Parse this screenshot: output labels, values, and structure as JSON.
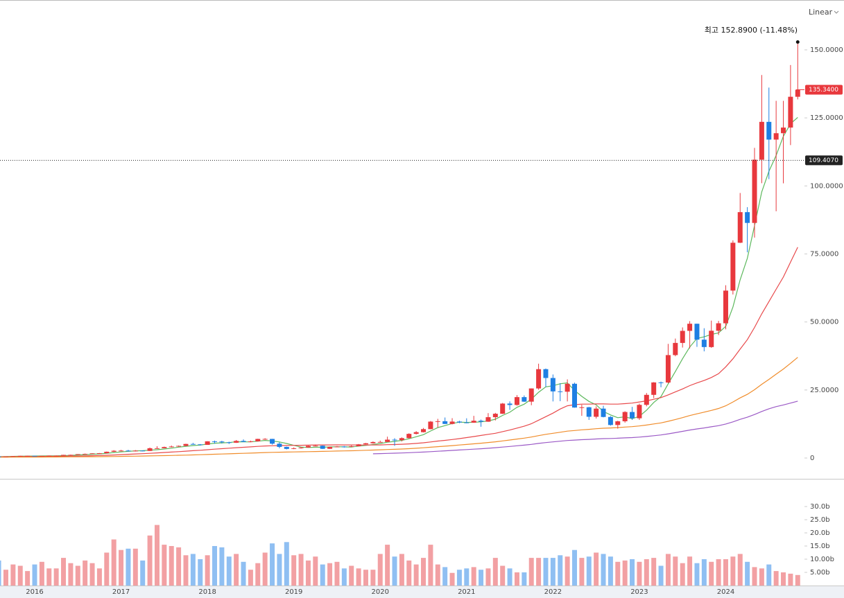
{
  "chart_data": {
    "type": "candlestick",
    "scale_mode": "Linear",
    "high_label": "최고 152.8900 (-11.48%)",
    "last_price": {
      "value": 135.34,
      "label": "135.3400"
    },
    "crosshair": {
      "value": 109.407,
      "label": "109.4070"
    },
    "categories": [
      null,
      null,
      null,
      null,
      null,
      "2016",
      null,
      null,
      null,
      null,
      null,
      null,
      null,
      null,
      null,
      null,
      null,
      "2017",
      null,
      null,
      null,
      null,
      null,
      null,
      null,
      null,
      null,
      null,
      null,
      "2018",
      null,
      null,
      null,
      null,
      null,
      null,
      null,
      null,
      null,
      null,
      null,
      "2019",
      null,
      null,
      null,
      null,
      null,
      null,
      null,
      null,
      null,
      null,
      null,
      "2020",
      null,
      null,
      null,
      null,
      null,
      null,
      null,
      null,
      null,
      null,
      null,
      "2021",
      null,
      null,
      null,
      null,
      null,
      null,
      null,
      null,
      null,
      null,
      null,
      "2022",
      null,
      null,
      null,
      null,
      null,
      null,
      null,
      null,
      null,
      null,
      null,
      "2023",
      null,
      null,
      null,
      null,
      null,
      null,
      null,
      null,
      null,
      null,
      null,
      "2024",
      null,
      null,
      null,
      null,
      null,
      null,
      null,
      null,
      null,
      null
    ],
    "open": [
      0.57,
      0.56,
      0.62,
      0.71,
      0.8,
      0.82,
      0.73,
      0.79,
      0.89,
      0.89,
      1.16,
      1.18,
      1.43,
      1.53,
      1.71,
      1.78,
      2.31,
      2.67,
      2.73,
      2.72,
      2.72,
      2.6,
      3.6,
      3.61,
      4.06,
      4.24,
      4.47,
      5.17,
      5.02,
      4.84,
      6.14,
      6.06,
      5.79,
      5.62,
      6.29,
      5.92,
      6.12,
      7.02,
      7.02,
      5.27,
      4.09,
      3.34,
      3.59,
      3.86,
      4.49,
      4.52,
      3.39,
      4.11,
      4.22,
      4.19,
      4.35,
      5.03,
      5.42,
      5.88,
      5.91,
      6.75,
      6.59,
      7.31,
      8.88,
      9.5,
      10.62,
      13.38,
      13.53,
      12.53,
      13.4,
      13.06,
      12.99,
      13.71,
      13.35,
      15.01,
      16.27,
      20.01,
      19.5,
      22.38,
      20.72,
      25.57,
      32.66,
      29.41,
      24.49,
      24.37,
      27.29,
      18.55,
      18.66,
      15.16,
      18.16,
      15.09,
      12.14,
      13.5,
      16.92,
      14.61,
      19.54,
      23.22,
      27.78,
      27.75,
      37.83,
      42.3,
      46.73,
      49.35,
      43.5,
      40.78,
      46.77,
      49.52,
      61.53,
      79.11,
      90.36,
      86.4,
      109.63,
      123.54,
      117.02,
      119.37,
      121.44,
      132.76
    ],
    "high": [
      0.6,
      0.63,
      0.72,
      0.82,
      0.85,
      0.83,
      0.79,
      0.91,
      0.95,
      1.18,
      1.25,
      1.45,
      1.65,
      1.73,
      1.84,
      2.38,
      2.89,
      3.0,
      3.02,
      2.92,
      2.82,
      3.85,
      4.35,
      4.2,
      4.6,
      4.6,
      5.25,
      5.58,
      5.12,
      6.17,
      6.4,
      6.35,
      6.0,
      6.62,
      6.85,
      6.4,
      7.08,
      7.3,
      7.05,
      5.77,
      4.2,
      3.9,
      4.1,
      4.63,
      4.93,
      4.6,
      4.2,
      4.4,
      4.4,
      4.65,
      5.15,
      5.55,
      6.1,
      6.4,
      7.85,
      7.3,
      7.6,
      9.1,
      9.9,
      11.05,
      13.6,
      14.4,
      14.9,
      14.65,
      13.7,
      14.6,
      15.5,
      14.13,
      16.5,
      16.6,
      20.23,
      20.82,
      23.12,
      23.0,
      25.6,
      34.67,
      32.9,
      30.7,
      27.5,
      28.9,
      27.7,
      19.6,
      18.8,
      19.0,
      19.2,
      15.4,
      13.7,
      17.2,
      18.8,
      20.0,
      23.9,
      27.9,
      28.1,
      41.95,
      43.9,
      48.0,
      50.3,
      49.35,
      47.7,
      50.5,
      50.4,
      63.5,
      80.0,
      97.4,
      92.2,
      114.0,
      140.76,
      136.15,
      131.26,
      131.26,
      144.42,
      152.89
    ],
    "low": [
      0.44,
      0.52,
      0.6,
      0.68,
      0.77,
      0.65,
      0.61,
      0.77,
      0.86,
      0.88,
      1.1,
      1.16,
      1.4,
      1.51,
      1.62,
      1.67,
      2.21,
      2.46,
      2.4,
      2.4,
      2.45,
      2.55,
      3.4,
      3.6,
      3.9,
      4.15,
      4.4,
      4.95,
      4.62,
      4.84,
      5.28,
      5.35,
      5.15,
      5.55,
      5.9,
      5.8,
      6.05,
      6.7,
      4.9,
      3.6,
      3.17,
      3.25,
      3.45,
      3.85,
      4.45,
      3.35,
      3.35,
      4.0,
      3.85,
      4.12,
      4.3,
      4.98,
      5.3,
      5.8,
      5.9,
      4.5,
      6.09,
      7.18,
      8.65,
      9.4,
      10.55,
      11.2,
      12.5,
      12.35,
      12.8,
      12.8,
      12.93,
      11.5,
      13.3,
      13.8,
      16.2,
      17.7,
      19.24,
      20.6,
      19.4,
      25.1,
      26.1,
      20.8,
      20.9,
      20.8,
      18.5,
      15.5,
      14.0,
      14.5,
      14.95,
      11.91,
      10.81,
      13.0,
      14.0,
      14.0,
      19.0,
      22.0,
      26.0,
      27.5,
      37.4,
      40.6,
      40.3,
      40.85,
      39.2,
      40.5,
      45.2,
      47.3,
      60.1,
      79.0,
      75.6,
      81.0,
      101.0,
      102.5,
      90.69,
      100.95,
      115.0,
      131.8
    ],
    "close": [
      0.56,
      0.62,
      0.71,
      0.8,
      0.82,
      0.73,
      0.79,
      0.89,
      0.89,
      1.16,
      1.18,
      1.43,
      1.53,
      1.71,
      1.78,
      2.31,
      2.67,
      2.73,
      2.72,
      2.72,
      2.6,
      3.6,
      3.61,
      4.06,
      4.24,
      4.47,
      5.17,
      5.02,
      4.84,
      6.14,
      6.06,
      5.79,
      5.62,
      6.29,
      5.92,
      6.12,
      7.02,
      7.02,
      5.27,
      4.09,
      3.34,
      3.59,
      3.86,
      4.49,
      4.52,
      3.39,
      4.11,
      4.22,
      4.19,
      4.35,
      5.03,
      5.42,
      5.88,
      5.91,
      6.75,
      6.59,
      7.31,
      8.88,
      9.5,
      10.62,
      13.38,
      13.53,
      12.53,
      13.4,
      13.06,
      12.99,
      13.71,
      13.35,
      15.01,
      16.27,
      20.01,
      19.5,
      22.38,
      20.72,
      25.57,
      32.66,
      29.41,
      24.49,
      24.37,
      27.29,
      18.55,
      18.66,
      15.16,
      18.16,
      15.09,
      12.14,
      13.5,
      16.92,
      14.61,
      19.54,
      23.22,
      27.78,
      27.75,
      37.83,
      42.3,
      46.73,
      49.35,
      43.5,
      40.78,
      46.77,
      49.52,
      61.53,
      79.11,
      90.36,
      86.4,
      109.63,
      123.54,
      117.02,
      119.37,
      121.44,
      132.76,
      135.34
    ],
    "up_color": "#e8383d",
    "down_color": "#1e7fe3",
    "volume_up_color": "#f2a0a3",
    "volume_down_color": "#8fbff2",
    "volume": [
      9.5,
      6,
      8,
      7.5,
      5.5,
      8,
      9,
      6.5,
      6.5,
      10.5,
      8.5,
      7.5,
      9.5,
      8.5,
      6.5,
      12.5,
      17.5,
      13.5,
      14,
      14,
      9.5,
      19,
      23,
      15.5,
      15,
      14.5,
      11.5,
      12,
      10,
      11.5,
      15,
      14.5,
      11,
      12,
      9,
      6,
      8.5,
      12.5,
      16,
      12,
      16.5,
      11.5,
      12,
      9.5,
      11,
      8,
      8.5,
      9,
      6.5,
      7.5,
      6.5,
      6,
      6,
      12,
      15.5,
      11,
      12,
      9.5,
      8,
      10.5,
      15.5,
      8,
      7,
      4.8,
      6,
      6.5,
      7,
      6,
      6.5,
      10.5,
      7.5,
      6.5,
      5,
      5,
      10.5,
      10.5,
      10.5,
      10.5,
      11.5,
      11,
      13.5,
      10.5,
      11,
      12.5,
      12,
      11,
      9,
      9.5,
      10,
      9,
      10,
      10.5,
      7.5,
      12,
      11,
      8.5,
      11,
      8.5,
      10,
      9,
      10,
      10,
      11,
      12,
      9,
      7,
      6.5,
      8,
      5.5,
      5,
      4.5,
      4
    ],
    "series": [
      {
        "color": "#5cb85c",
        "values": [
          0.52,
          0.55,
          0.6,
          0.65,
          0.7,
          0.74,
          0.77,
          0.81,
          0.82,
          0.89,
          0.98,
          1.11,
          1.24,
          1.4,
          1.53,
          1.75,
          2.0,
          2.24,
          2.44,
          2.63,
          2.69,
          2.87,
          3.05,
          3.32,
          3.62,
          4.0,
          4.31,
          4.59,
          4.75,
          5.13,
          5.45,
          5.57,
          5.69,
          5.98,
          5.94,
          5.95,
          6.19,
          6.47,
          6.27,
          5.9,
          5.35,
          4.66,
          4.03,
          3.87,
          3.96,
          3.97,
          4.07,
          4.15,
          4.09,
          4.05,
          4.38,
          4.64,
          4.97,
          5.32,
          5.8,
          6.11,
          6.49,
          7.09,
          7.81,
          8.58,
          9.94,
          11.18,
          11.91,
          12.69,
          13.18,
          13.1,
          13.14,
          13.3,
          13.62,
          14.27,
          15.67,
          16.83,
          18.63,
          19.78,
          21.64,
          24.17,
          26.15,
          26.57,
          27.3,
          27.64,
          24.82,
          22.67,
          20.81,
          19.56,
          17.12,
          15.84,
          14.81,
          15.16,
          14.45,
          15.34,
          17.56,
          20.41,
          22.58,
          27.22,
          31.78,
          36.48,
          40.79,
          43.94,
          44.53,
          45.43,
          45.98,
          48.42,
          55.54,
          65.46,
          73.38,
          85.41,
          97.81,
          105.39,
          111.19,
          118.2,
          122.83,
          125.19
        ]
      },
      {
        "color": "#e8484a",
        "values": [
          0.45,
          0.47,
          0.49,
          0.52,
          0.55,
          0.57,
          0.59,
          0.61,
          0.63,
          0.66,
          0.7,
          0.75,
          0.8,
          0.86,
          0.93,
          1.02,
          1.13,
          1.25,
          1.37,
          1.49,
          1.6,
          1.74,
          1.88,
          2.03,
          2.18,
          2.34,
          2.52,
          2.7,
          2.86,
          3.06,
          3.26,
          3.44,
          3.62,
          3.8,
          3.95,
          4.1,
          4.27,
          4.42,
          4.51,
          4.58,
          4.61,
          4.65,
          4.69,
          4.75,
          4.8,
          4.8,
          4.82,
          4.83,
          4.82,
          4.8,
          4.79,
          4.78,
          4.78,
          4.82,
          4.91,
          4.97,
          5.06,
          5.2,
          5.38,
          5.6,
          5.92,
          6.23,
          6.49,
          6.81,
          7.13,
          7.5,
          7.9,
          8.3,
          8.7,
          9.1,
          9.7,
          10.3,
          11.0,
          11.7,
          12.6,
          13.9,
          15.2,
          16.5,
          18.0,
          19.2,
          19.6,
          19.8,
          19.8,
          19.9,
          19.9,
          19.8,
          19.8,
          20.0,
          20.2,
          20.6,
          21.0,
          21.6,
          22.2,
          23.2,
          24.3,
          25.4,
          26.6,
          27.6,
          28.5,
          29.6,
          31.0,
          33.5,
          36.5,
          40.0,
          43.5,
          48.0,
          53.0,
          57.5,
          62.0,
          66.5,
          72.0,
          77.5
        ]
      },
      {
        "color": "#f08c2a",
        "values": [
          0.3,
          0.31,
          0.32,
          0.33,
          0.34,
          0.35,
          0.36,
          0.37,
          0.38,
          0.4,
          0.42,
          0.44,
          0.46,
          0.48,
          0.5,
          0.53,
          0.57,
          0.61,
          0.65,
          0.69,
          0.73,
          0.78,
          0.83,
          0.89,
          0.95,
          1.01,
          1.08,
          1.15,
          1.22,
          1.31,
          1.4,
          1.48,
          1.56,
          1.65,
          1.73,
          1.82,
          1.92,
          2.02,
          2.09,
          2.14,
          2.18,
          2.23,
          2.28,
          2.34,
          2.4,
          2.44,
          2.5,
          2.56,
          2.62,
          2.68,
          2.76,
          2.84,
          2.93,
          3.02,
          3.12,
          3.21,
          3.32,
          3.45,
          3.6,
          3.76,
          3.96,
          4.17,
          4.36,
          4.57,
          4.78,
          5.0,
          5.23,
          5.45,
          5.7,
          5.97,
          6.3,
          6.62,
          6.98,
          7.31,
          7.71,
          8.23,
          8.7,
          9.1,
          9.47,
          9.88,
          10.12,
          10.37,
          10.55,
          10.78,
          10.95,
          11.05,
          11.18,
          11.37,
          11.53,
          11.8,
          12.12,
          12.52,
          12.92,
          13.5,
          14.15,
          14.85,
          15.6,
          16.25,
          16.85,
          17.5,
          18.2,
          19.2,
          20.6,
          22.1,
          23.4,
          25.1,
          27.1,
          28.9,
          30.8,
          32.7,
          34.8,
          37.0
        ]
      },
      {
        "color": "#9b59c6",
        "values": [
          null,
          null,
          null,
          null,
          null,
          null,
          null,
          null,
          null,
          null,
          null,
          null,
          null,
          null,
          null,
          null,
          null,
          null,
          null,
          null,
          null,
          null,
          null,
          null,
          null,
          null,
          null,
          null,
          null,
          null,
          null,
          null,
          null,
          null,
          null,
          null,
          null,
          null,
          null,
          null,
          null,
          null,
          null,
          null,
          null,
          null,
          null,
          null,
          null,
          null,
          null,
          null,
          1.55,
          1.62,
          1.7,
          1.78,
          1.87,
          1.97,
          2.08,
          2.2,
          2.35,
          2.5,
          2.65,
          2.8,
          2.96,
          3.11,
          3.27,
          3.42,
          3.6,
          3.79,
          4.02,
          4.24,
          4.5,
          4.74,
          5.02,
          5.37,
          5.69,
          5.94,
          6.18,
          6.45,
          6.6,
          6.75,
          6.86,
          7.01,
          7.12,
          7.18,
          7.27,
          7.4,
          7.5,
          7.7,
          7.92,
          8.2,
          8.48,
          8.88,
          9.32,
          9.8,
          10.3,
          10.7,
          11.05,
          11.48,
          11.9,
          12.5,
          13.3,
          14.2,
          15.0,
          16.0,
          17.1,
          18.1,
          18.9,
          19.5,
          20.2,
          20.9
        ]
      }
    ],
    "ylim": [
      -7.385,
      168.32
    ],
    "yticks": [
      0,
      {
        "value": 25,
        "label": "25.0000"
      },
      {
        "value": 50,
        "label": "50.0000"
      },
      {
        "value": 75,
        "label": "75.0000"
      },
      {
        "value": 100,
        "label": "100.0000"
      },
      {
        "value": 125,
        "label": "125.0000"
      },
      {
        "value": 150,
        "label": "150.0000"
      }
    ],
    "volume_ylim": [
      0,
      40.26
    ],
    "volume_ticks": [
      {
        "value": 5,
        "label": "5.00b"
      },
      {
        "value": 10,
        "label": "10.00b"
      },
      {
        "value": 15,
        "label": "15.0b"
      },
      {
        "value": 20,
        "label": "20.0b"
      },
      {
        "value": 25,
        "label": "25.0b"
      },
      {
        "value": 30,
        "label": "30.0b"
      }
    ]
  }
}
